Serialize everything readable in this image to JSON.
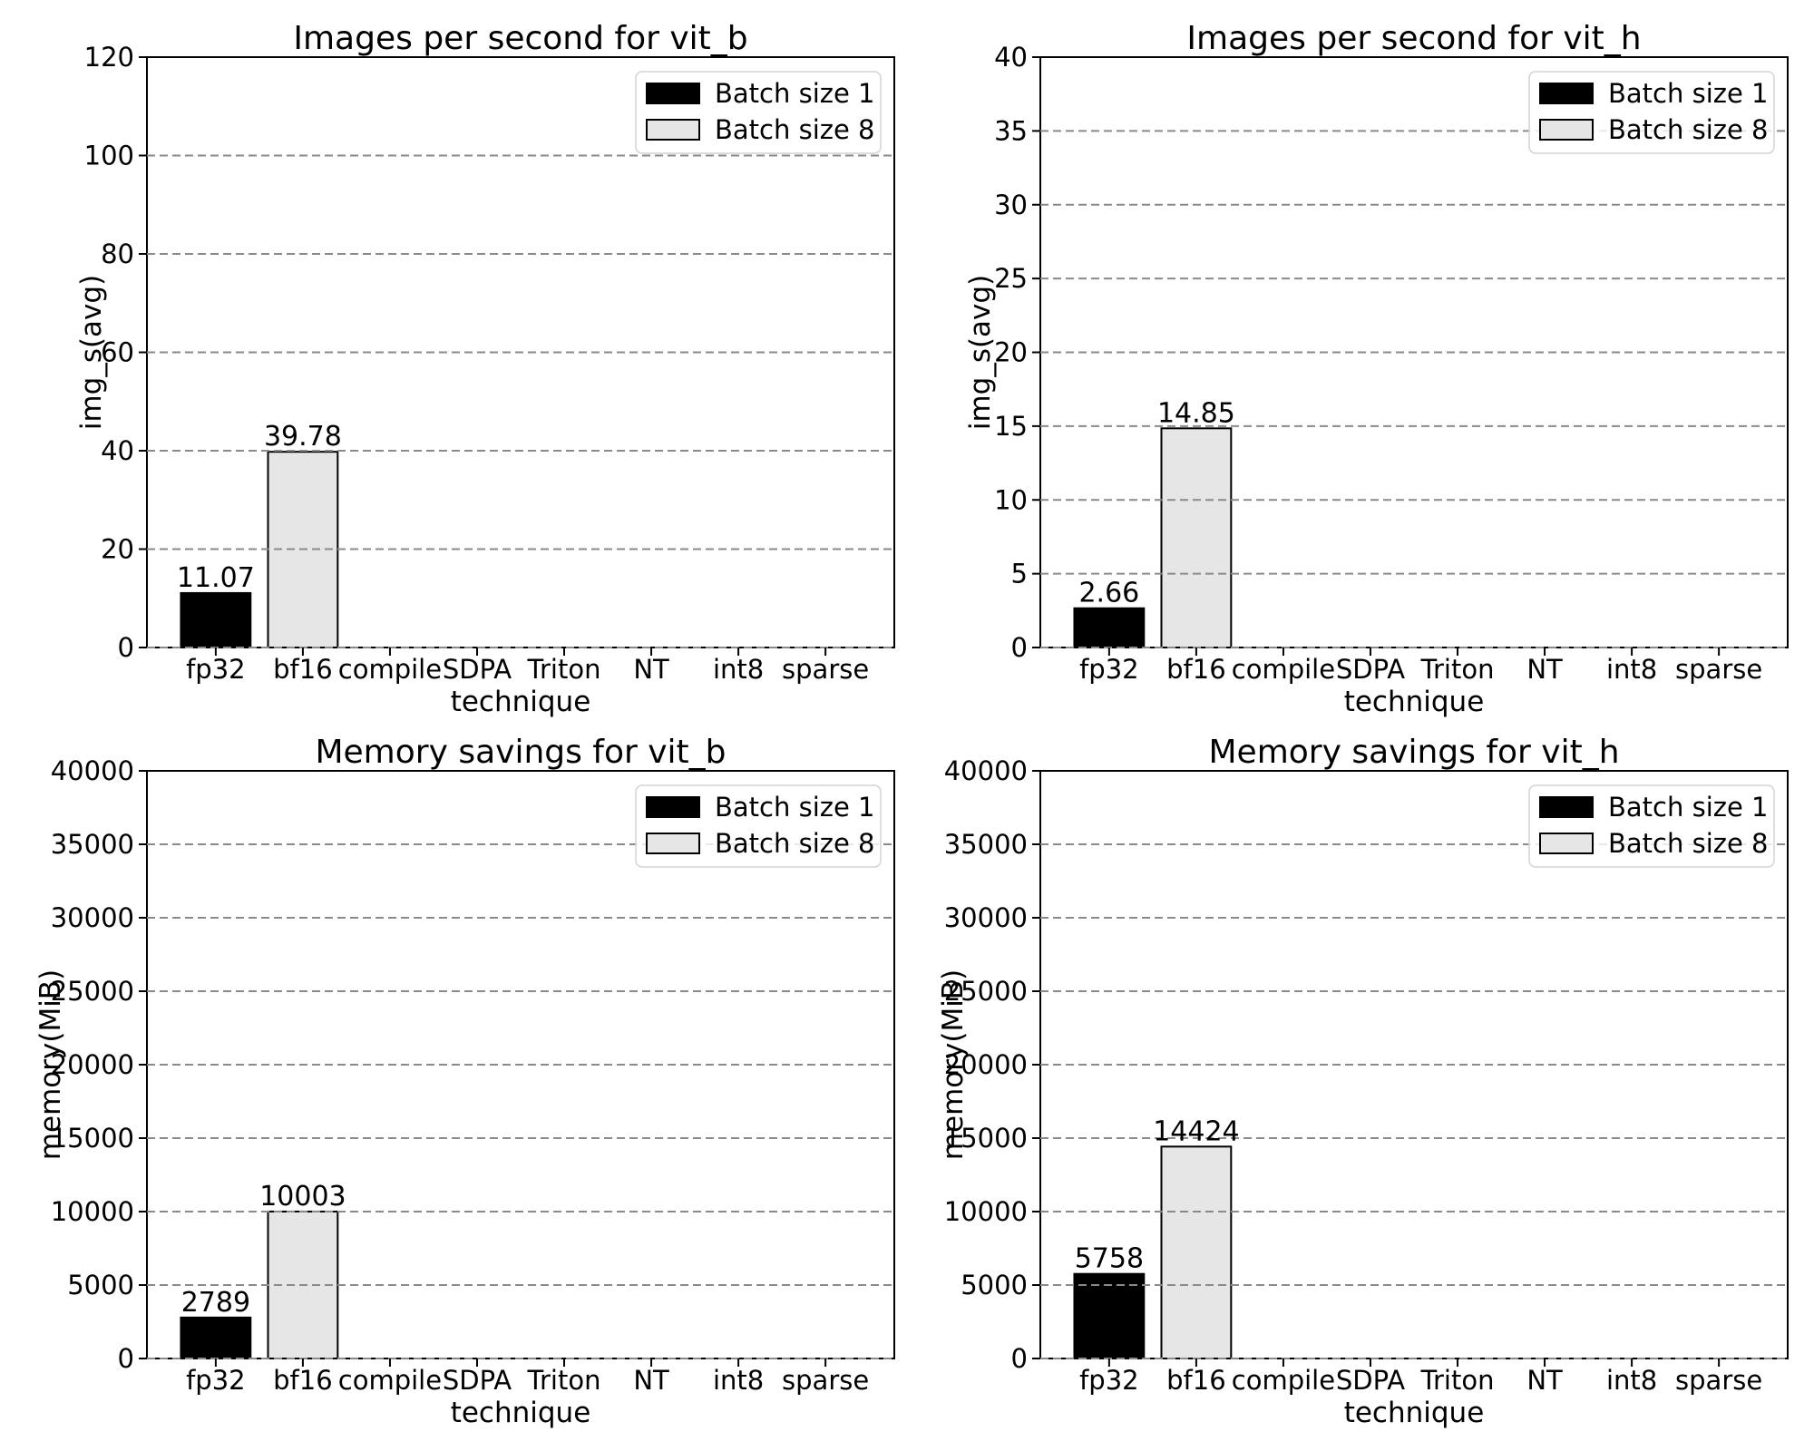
{
  "figure": {
    "background": "#ffffff",
    "axis_color": "#000000",
    "text_color": "#000000",
    "grid_color": "#8a8a8a",
    "legend_border_color": "#d4d4d4",
    "bar_edge_color": "#000000"
  },
  "chart_data": [
    {
      "type": "bar",
      "title": "Images per second for vit_b",
      "xlabel": "technique",
      "ylabel": "img_s(avg)",
      "categories": [
        "fp32",
        "bf16",
        "compile",
        "SDPA",
        "Triton",
        "NT",
        "int8",
        "sparse"
      ],
      "ylim": [
        0,
        120
      ],
      "ytick_step": 20,
      "grid": "dashed horizontal",
      "legend_position": "upper right",
      "series": [
        {
          "name": "Batch size 1",
          "color": "#000000",
          "values": [
            11.07,
            null,
            null,
            null,
            null,
            null,
            null,
            null
          ],
          "labels": [
            "11.07",
            null,
            null,
            null,
            null,
            null,
            null,
            null
          ]
        },
        {
          "name": "Batch size 8",
          "color": "#e6e6e6",
          "values": [
            null,
            39.78,
            null,
            null,
            null,
            null,
            null,
            null
          ],
          "labels": [
            null,
            "39.78",
            null,
            null,
            null,
            null,
            null,
            null
          ]
        }
      ]
    },
    {
      "type": "bar",
      "title": "Images per second for vit_h",
      "xlabel": "technique",
      "ylabel": "img_s(avg)",
      "categories": [
        "fp32",
        "bf16",
        "compile",
        "SDPA",
        "Triton",
        "NT",
        "int8",
        "sparse"
      ],
      "ylim": [
        0,
        40
      ],
      "ytick_step": 5,
      "grid": "dashed horizontal",
      "legend_position": "upper right",
      "series": [
        {
          "name": "Batch size 1",
          "color": "#000000",
          "values": [
            2.66,
            null,
            null,
            null,
            null,
            null,
            null,
            null
          ],
          "labels": [
            "2.66",
            null,
            null,
            null,
            null,
            null,
            null,
            null
          ]
        },
        {
          "name": "Batch size 8",
          "color": "#e6e6e6",
          "values": [
            null,
            14.85,
            null,
            null,
            null,
            null,
            null,
            null
          ],
          "labels": [
            null,
            "14.85",
            null,
            null,
            null,
            null,
            null,
            null
          ]
        }
      ]
    },
    {
      "type": "bar",
      "title": "Memory savings for vit_b",
      "xlabel": "technique",
      "ylabel": "memory(MiB)",
      "categories": [
        "fp32",
        "bf16",
        "compile",
        "SDPA",
        "Triton",
        "NT",
        "int8",
        "sparse"
      ],
      "ylim": [
        0,
        40000
      ],
      "ytick_step": 5000,
      "grid": "dashed horizontal",
      "legend_position": "upper right",
      "series": [
        {
          "name": "Batch size 1",
          "color": "#000000",
          "values": [
            2789,
            null,
            null,
            null,
            null,
            null,
            null,
            null
          ],
          "labels": [
            "2789",
            null,
            null,
            null,
            null,
            null,
            null,
            null
          ]
        },
        {
          "name": "Batch size 8",
          "color": "#e6e6e6",
          "values": [
            null,
            10003,
            null,
            null,
            null,
            null,
            null,
            null
          ],
          "labels": [
            null,
            "10003",
            null,
            null,
            null,
            null,
            null,
            null
          ]
        }
      ]
    },
    {
      "type": "bar",
      "title": "Memory savings for vit_h",
      "xlabel": "technique",
      "ylabel": "memory(MiB)",
      "categories": [
        "fp32",
        "bf16",
        "compile",
        "SDPA",
        "Triton",
        "NT",
        "int8",
        "sparse"
      ],
      "ylim": [
        0,
        40000
      ],
      "ytick_step": 5000,
      "grid": "dashed horizontal",
      "legend_position": "upper right",
      "series": [
        {
          "name": "Batch size 1",
          "color": "#000000",
          "values": [
            5758,
            null,
            null,
            null,
            null,
            null,
            null,
            null
          ],
          "labels": [
            "5758",
            null,
            null,
            null,
            null,
            null,
            null,
            null
          ]
        },
        {
          "name": "Batch size 8",
          "color": "#e6e6e6",
          "values": [
            null,
            14424,
            null,
            null,
            null,
            null,
            null,
            null
          ],
          "labels": [
            null,
            "14424",
            null,
            null,
            null,
            null,
            null,
            null
          ]
        }
      ]
    }
  ]
}
